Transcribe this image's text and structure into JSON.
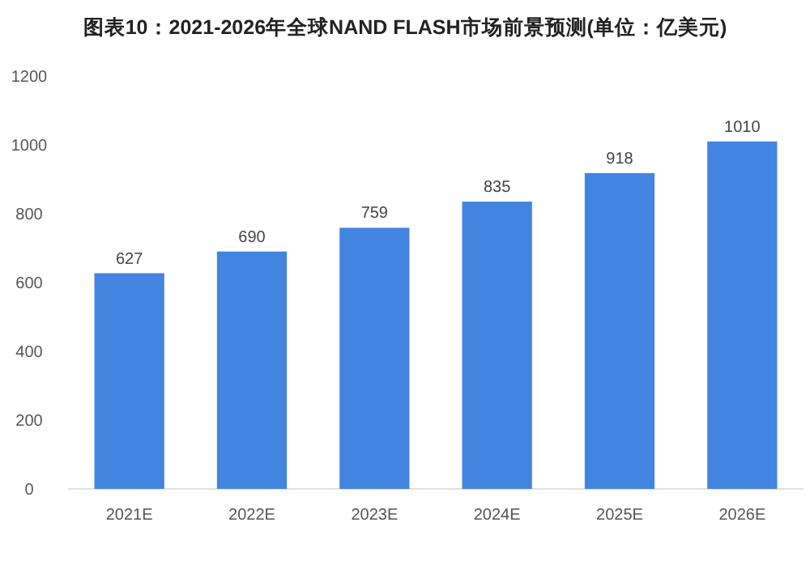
{
  "chart_data": {
    "type": "bar",
    "title": "图表10：2021-2026年全球NAND FLASH市场前景预测(单位：亿美元)",
    "categories": [
      "2021E",
      "2022E",
      "2023E",
      "2024E",
      "2025E",
      "2026E"
    ],
    "values": [
      627,
      690,
      759,
      835,
      918,
      1010
    ],
    "color": "#4285e0",
    "ylim": [
      0,
      1200
    ],
    "yticks": [
      0,
      200,
      400,
      600,
      800,
      1000,
      1200
    ],
    "data_labels": true,
    "grid": false
  }
}
